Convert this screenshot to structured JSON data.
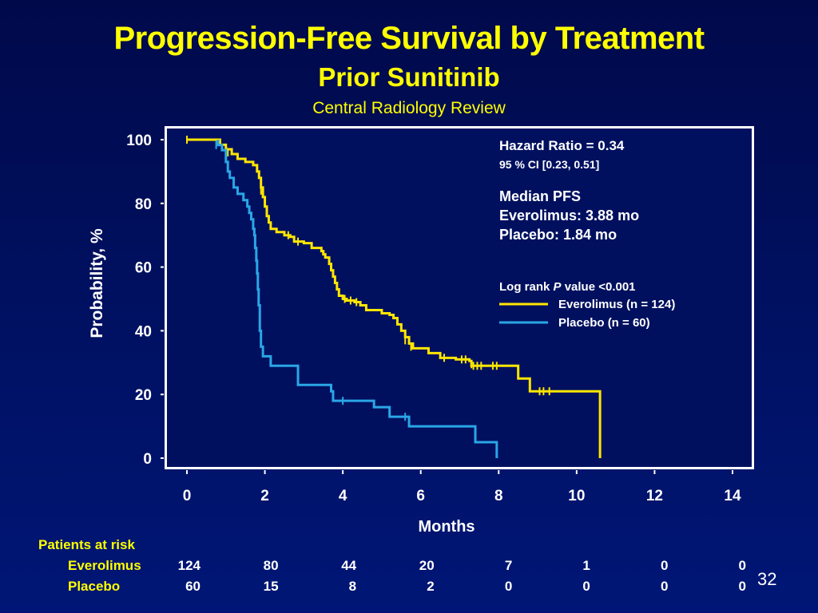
{
  "slide": {
    "title": "Progression-Free Survival by Treatment",
    "subtitle": "Prior Sunitinib",
    "note": "Central Radiology Review",
    "slide_number": "32",
    "colors": {
      "background_top": "#00094a",
      "background_bottom": "#001676",
      "title": "#ffff00",
      "everolimus": "#ffe600",
      "placebo": "#2aa6e6",
      "plot_border": "#ffffff"
    }
  },
  "chart_data": {
    "type": "line",
    "subtype": "kaplan-meier step curve",
    "xlabel": "Months",
    "ylabel": "Probability, %",
    "xlim": [
      0,
      14
    ],
    "ylim": [
      0,
      100
    ],
    "xticks": [
      "0",
      "2",
      "4",
      "6",
      "8",
      "10",
      "12",
      "14"
    ],
    "yticks": [
      "0",
      "20",
      "40",
      "60",
      "80",
      "100"
    ],
    "grid": false,
    "annotations": {
      "hazard_ratio": "Hazard Ratio = 0.34",
      "ci": "95 % CI [0.23, 0.51]",
      "median_heading": "Median PFS",
      "median_everolimus": "Everolimus: 3.88 mo",
      "median_placebo": "Placebo: 1.84 mo",
      "logrank_prefix": "Log rank ",
      "logrank_p": "P",
      "logrank_suffix": " value <0.001"
    },
    "legend": [
      {
        "label": "Everolimus (n = 124)",
        "color": "#ffe600"
      },
      {
        "label": "Placebo  (n = 60)",
        "color": "#2aa6e6"
      }
    ],
    "series": [
      {
        "name": "Everolimus",
        "color": "#ffe600",
        "points": [
          [
            0,
            100
          ],
          [
            0.85,
            98.4
          ],
          [
            1.0,
            97
          ],
          [
            1.15,
            95.5
          ],
          [
            1.3,
            94
          ],
          [
            1.5,
            93
          ],
          [
            1.7,
            92
          ],
          [
            1.8,
            90
          ],
          [
            1.85,
            88
          ],
          [
            1.9,
            85
          ],
          [
            1.95,
            82
          ],
          [
            2.0,
            79
          ],
          [
            2.05,
            76
          ],
          [
            2.1,
            74
          ],
          [
            2.15,
            72
          ],
          [
            2.3,
            71
          ],
          [
            2.5,
            70
          ],
          [
            2.65,
            69.5
          ],
          [
            2.75,
            68
          ],
          [
            3.0,
            67.5
          ],
          [
            3.2,
            66
          ],
          [
            3.45,
            65
          ],
          [
            3.5,
            64
          ],
          [
            3.55,
            63
          ],
          [
            3.65,
            61
          ],
          [
            3.7,
            59
          ],
          [
            3.75,
            57
          ],
          [
            3.8,
            55
          ],
          [
            3.85,
            53
          ],
          [
            3.9,
            51
          ],
          [
            4.0,
            50
          ],
          [
            4.1,
            49.5
          ],
          [
            4.3,
            49
          ],
          [
            4.45,
            48
          ],
          [
            4.6,
            46.5
          ],
          [
            5.0,
            45.5
          ],
          [
            5.2,
            45
          ],
          [
            5.3,
            44
          ],
          [
            5.4,
            42
          ],
          [
            5.5,
            40
          ],
          [
            5.6,
            38
          ],
          [
            5.7,
            36
          ],
          [
            5.8,
            34.5
          ],
          [
            6.2,
            33
          ],
          [
            6.5,
            31.5
          ],
          [
            6.9,
            31
          ],
          [
            7.25,
            30.5
          ],
          [
            7.3,
            29
          ],
          [
            8.4,
            29
          ],
          [
            8.5,
            25
          ],
          [
            8.8,
            21
          ],
          [
            10.6,
            21
          ],
          [
            10.6,
            0
          ]
        ],
        "censored": [
          [
            0,
            100
          ],
          [
            1.05,
            96
          ],
          [
            1.9,
            84
          ],
          [
            2.6,
            70
          ],
          [
            2.85,
            68
          ],
          [
            4.05,
            50
          ],
          [
            4.2,
            49.5
          ],
          [
            4.35,
            49
          ],
          [
            5.6,
            37
          ],
          [
            5.75,
            35
          ],
          [
            6.6,
            31.5
          ],
          [
            7.05,
            31
          ],
          [
            7.15,
            31
          ],
          [
            7.3,
            29.5
          ],
          [
            7.35,
            29
          ],
          [
            7.45,
            29
          ],
          [
            7.55,
            29
          ],
          [
            7.85,
            29
          ],
          [
            7.95,
            29
          ],
          [
            9.05,
            21
          ],
          [
            9.15,
            21
          ],
          [
            9.3,
            21
          ]
        ]
      },
      {
        "name": "Placebo",
        "color": "#2aa6e6",
        "points": [
          [
            0.8,
            100
          ],
          [
            0.8,
            98.3
          ],
          [
            0.9,
            96.7
          ],
          [
            1.0,
            93
          ],
          [
            1.05,
            90
          ],
          [
            1.1,
            88
          ],
          [
            1.2,
            85
          ],
          [
            1.3,
            83
          ],
          [
            1.45,
            81
          ],
          [
            1.55,
            79
          ],
          [
            1.6,
            77
          ],
          [
            1.65,
            75
          ],
          [
            1.7,
            72
          ],
          [
            1.73,
            70
          ],
          [
            1.75,
            66
          ],
          [
            1.78,
            62
          ],
          [
            1.8,
            58
          ],
          [
            1.82,
            53
          ],
          [
            1.84,
            48
          ],
          [
            1.87,
            40
          ],
          [
            1.9,
            35
          ],
          [
            1.95,
            32
          ],
          [
            2.15,
            29
          ],
          [
            2.85,
            26
          ],
          [
            2.85,
            23
          ],
          [
            3.7,
            21
          ],
          [
            3.75,
            18
          ],
          [
            4.8,
            16
          ],
          [
            5.2,
            13
          ],
          [
            5.7,
            10
          ],
          [
            7.4,
            5
          ],
          [
            7.95,
            0
          ]
        ],
        "censored": [
          [
            0.75,
            98.3
          ],
          [
            1.0,
            94
          ],
          [
            1.78,
            64
          ],
          [
            4.0,
            18
          ],
          [
            5.6,
            13
          ]
        ]
      }
    ]
  },
  "risk_table": {
    "heading": "Patients at risk",
    "rows": [
      {
        "label": "Everolimus",
        "values": [
          "124",
          "80",
          "44",
          "20",
          "7",
          "1",
          "0",
          "0"
        ]
      },
      {
        "label": "Placebo",
        "values": [
          "60",
          "15",
          "8",
          "2",
          "0",
          "0",
          "0",
          "0"
        ]
      }
    ]
  }
}
